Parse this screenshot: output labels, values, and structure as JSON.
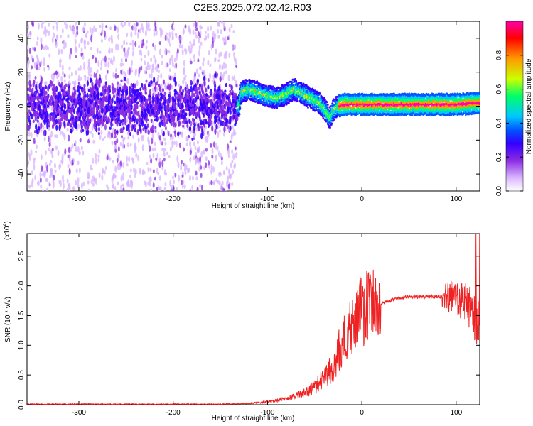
{
  "title": "C2E3.2025.072.02.42.R03",
  "chart_data": [
    {
      "type": "heatmap",
      "xlabel": "Height of straight line (km)",
      "ylabel": "Frequency (Hz)",
      "xlim": [
        -355,
        125
      ],
      "ylim": [
        -50,
        50
      ],
      "xticks": [
        -300,
        -200,
        -100,
        0,
        100
      ],
      "yticks": [
        -40,
        -20,
        0,
        20,
        40
      ],
      "xtick_labels": [
        "-300",
        "-200",
        "-100",
        "0",
        "100"
      ],
      "ytick_labels": [
        "-40",
        "-20",
        "0",
        "20",
        "40"
      ],
      "colorbar": {
        "label": "Normalized spectral amplitude",
        "range": [
          0,
          1
        ],
        "ticks": [
          0.0,
          0.2,
          0.4,
          0.6,
          0.8
        ],
        "tick_labels": [
          "0.0",
          "0.2",
          "0.4",
          "0.6",
          "0.8"
        ],
        "colormap": [
          "#ffffff",
          "#d8b4ff",
          "#8a2be2",
          "#3300ff",
          "#0055ff",
          "#00c8ff",
          "#00ff66",
          "#ccff00",
          "#ff9900",
          "#ff0000",
          "#ff00aa"
        ]
      },
      "center_line": [
        [
          -355,
          0
        ],
        [
          -130,
          0
        ],
        [
          -128,
          8
        ],
        [
          -120,
          10
        ],
        [
          -110,
          8
        ],
        [
          -100,
          6
        ],
        [
          -90,
          5
        ],
        [
          -80,
          7
        ],
        [
          -72,
          10
        ],
        [
          -65,
          8
        ],
        [
          -55,
          5
        ],
        [
          -45,
          2
        ],
        [
          -38,
          -3
        ],
        [
          -34,
          -7
        ],
        [
          -30,
          -2
        ],
        [
          -25,
          0
        ],
        [
          -20,
          1
        ],
        [
          0,
          1
        ],
        [
          50,
          1
        ],
        [
          100,
          1
        ],
        [
          125,
          2
        ]
      ]
    },
    {
      "type": "line",
      "xlabel": "Height of straight line (km)",
      "ylabel": "SNR (10 * v/v)",
      "y_multiplier_label": "(x10",
      "y_multiplier_exp": "4",
      "xlim": [
        -355,
        125
      ],
      "ylim": [
        0,
        2.88
      ],
      "xticks": [
        -300,
        -200,
        -100,
        0,
        100
      ],
      "yticks": [
        0.0,
        0.5,
        1.0,
        1.5,
        2.0,
        2.5
      ],
      "xtick_labels": [
        "-300",
        "-200",
        "-100",
        "0",
        "100"
      ],
      "ytick_labels": [
        "0.0",
        "0.5",
        "1.0",
        "1.5",
        "2.0",
        "2.5"
      ],
      "color": "#ee2222",
      "envelope": [
        [
          -355,
          0.01
        ],
        [
          -250,
          0.01
        ],
        [
          -150,
          0.01
        ],
        [
          -120,
          0.02
        ],
        [
          -100,
          0.05
        ],
        [
          -80,
          0.1
        ],
        [
          -60,
          0.2
        ],
        [
          -50,
          0.3
        ],
        [
          -40,
          0.45
        ],
        [
          -30,
          0.65
        ],
        [
          -25,
          0.9
        ],
        [
          -20,
          1.1
        ],
        [
          -15,
          1.2
        ],
        [
          -10,
          1.3
        ],
        [
          -5,
          1.45
        ],
        [
          0,
          1.6
        ],
        [
          10,
          1.65
        ],
        [
          20,
          1.7
        ],
        [
          30,
          1.75
        ],
        [
          40,
          1.8
        ],
        [
          60,
          1.82
        ],
        [
          80,
          1.82
        ],
        [
          95,
          1.8
        ],
        [
          105,
          1.75
        ],
        [
          115,
          1.65
        ],
        [
          125,
          1.3
        ]
      ]
    }
  ]
}
